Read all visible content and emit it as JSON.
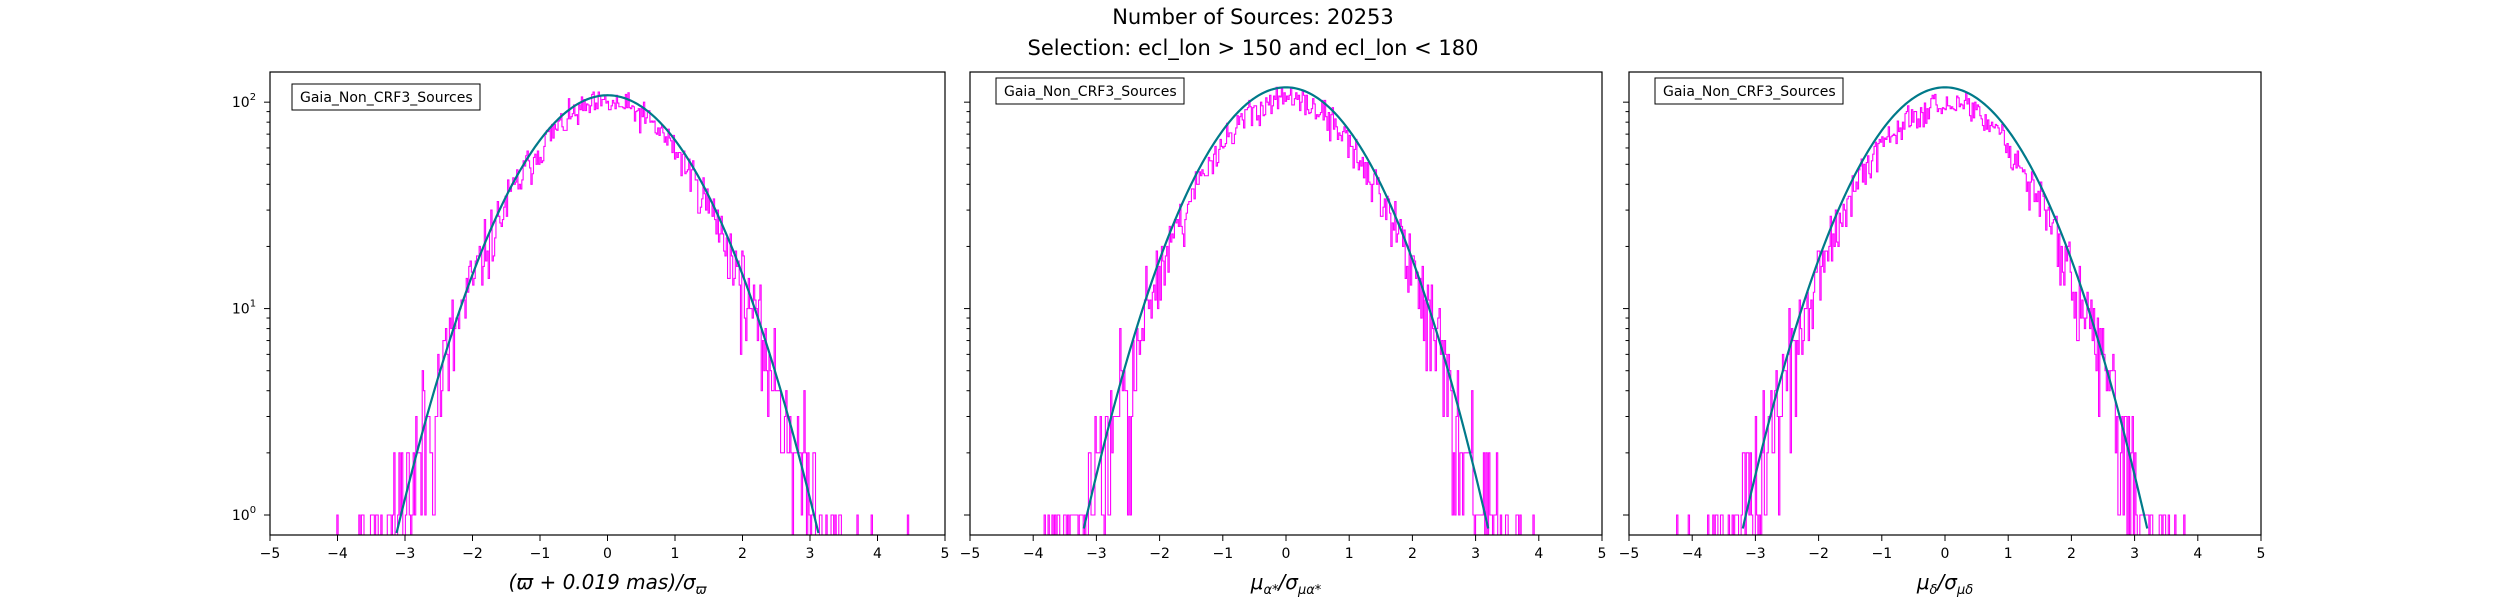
{
  "figure": {
    "title_line1": "Number of Sources: 20253",
    "title_line2": "Selection: ecl_lon > 150 and ecl_lon < 180"
  },
  "colors": {
    "histogram": "#ff00ff",
    "fit_curve": "#007a8a"
  },
  "chart_data": [
    {
      "type": "histogram_with_fit",
      "xlabel": "(ϖ + 0.019 mas)/σ_ϖ",
      "xlabel_parts": {
        "main": "(ϖ + 0.019 mas)/σ",
        "sub": "ϖ"
      },
      "legend": "Gaia_Non_CRF3_Sources",
      "legend_placement": "top-left",
      "xlim": [
        -5,
        5
      ],
      "ylim": [
        0.8,
        140
      ],
      "yscale": "log",
      "xticks": [
        "−5",
        "−4",
        "−3",
        "−2",
        "−1",
        "0",
        "1",
        "2",
        "3",
        "4",
        "5"
      ],
      "xtick_values": [
        -5,
        -4,
        -3,
        -2,
        -1,
        0,
        1,
        2,
        3,
        4,
        5
      ],
      "yticks": [
        {
          "value": 1,
          "base": "10",
          "exp": "0"
        },
        {
          "value": 10,
          "base": "10",
          "exp": "1"
        },
        {
          "value": 100,
          "base": "10",
          "exp": "2"
        }
      ],
      "fit_peak": 108,
      "fit_sigma": 1.0,
      "hist_peak": 100,
      "hist_range": [
        -4.7,
        4.5
      ],
      "n_bins": 480,
      "seed": 11
    },
    {
      "type": "histogram_with_fit",
      "xlabel": "μ_α*/σ_μα*",
      "xlabel_parts": {
        "main": "μ",
        "sub1": "α*",
        "mid": "/σ",
        "sub2": "μα*"
      },
      "legend": "Gaia_Non_CRF3_Sources",
      "legend_placement": "top-left",
      "xlim": [
        -5,
        5
      ],
      "ylim": [
        0.8,
        140
      ],
      "yscale": "log",
      "xticks": [
        "−5",
        "−4",
        "−3",
        "−2",
        "−1",
        "0",
        "1",
        "2",
        "3",
        "4",
        "5"
      ],
      "xtick_values": [
        -5,
        -4,
        -3,
        -2,
        -1,
        0,
        1,
        2,
        3,
        4,
        5
      ],
      "fit_peak": 118,
      "fit_sigma": 1.02,
      "hist_peak": 105,
      "hist_range": [
        -4.9,
        5.0
      ],
      "n_bins": 480,
      "seed": 23
    },
    {
      "type": "histogram_with_fit",
      "xlabel": "μ_δ/σ_μδ",
      "xlabel_parts": {
        "main": "μ",
        "sub1": "δ",
        "mid": "/σ",
        "sub2": "μδ"
      },
      "legend": "Gaia_Non_CRF3_Sources",
      "legend_placement": "top-left",
      "xlim": [
        -5,
        5
      ],
      "ylim": [
        0.8,
        140
      ],
      "yscale": "log",
      "xticks": [
        "−5",
        "−4",
        "−3",
        "−2",
        "−1",
        "0",
        "1",
        "2",
        "3",
        "4",
        "5"
      ],
      "xtick_values": [
        -5,
        -4,
        -3,
        -2,
        -1,
        0,
        1,
        2,
        3,
        4,
        5
      ],
      "fit_peak": 118,
      "fit_sigma": 1.02,
      "hist_peak": 100,
      "hist_range": [
        -4.9,
        4.9
      ],
      "n_bins": 480,
      "seed": 37
    }
  ]
}
